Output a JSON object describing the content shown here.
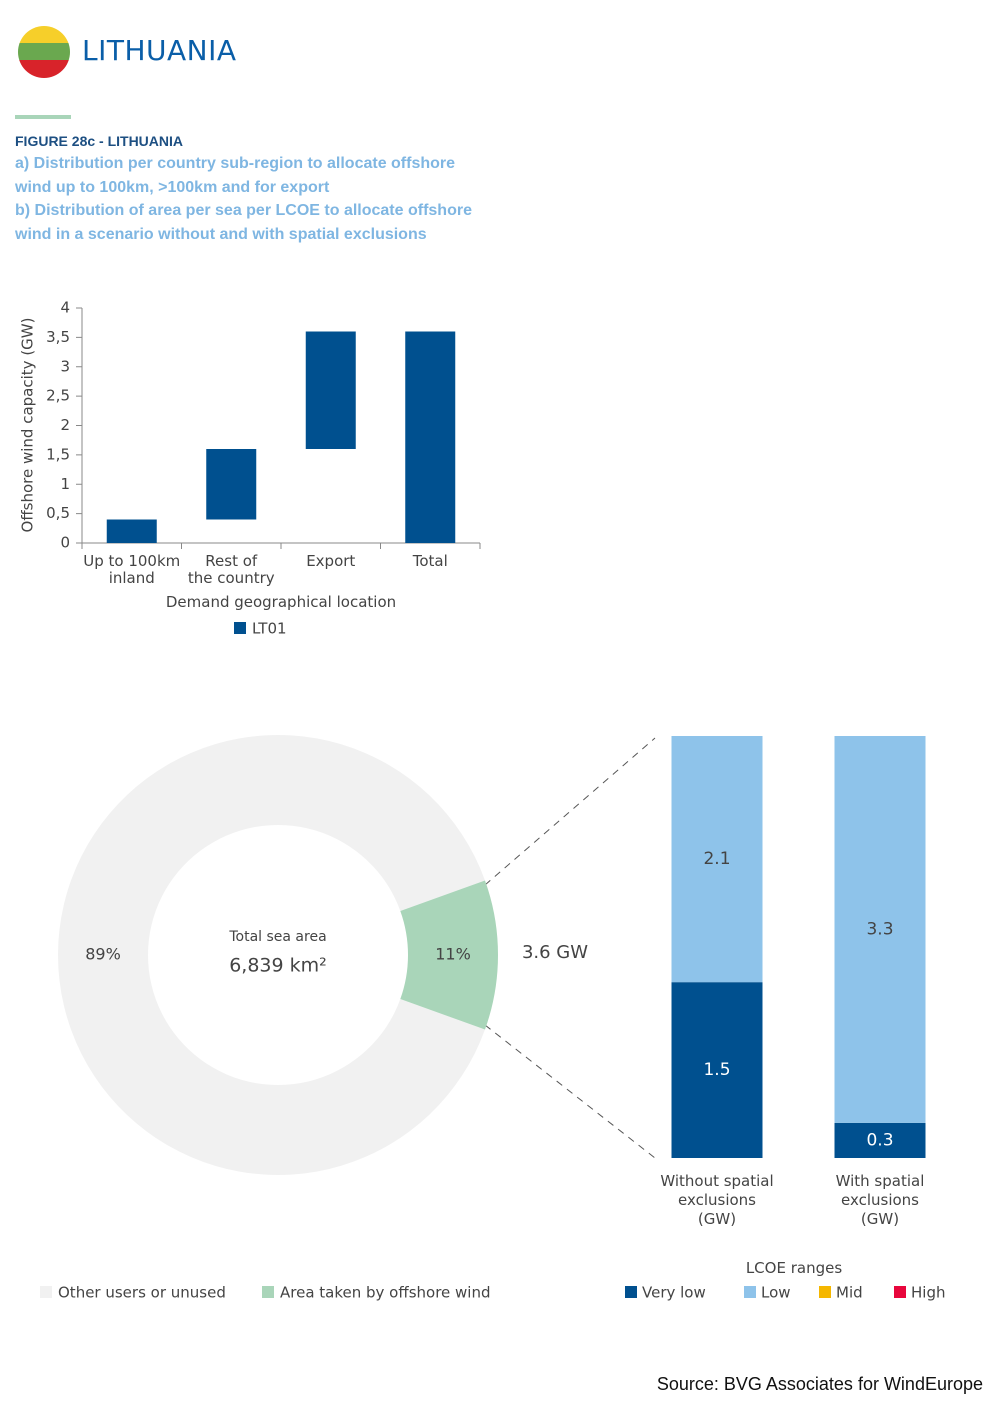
{
  "header": {
    "title": "LITHUANIA"
  },
  "figure": {
    "label": "FIGURE 28c - LITHUANIA",
    "caption_a": "a) Distribution per country sub-region to allocate offshore wind up to 100km, >100km and for export",
    "caption_b": "b) Distribution of area per sea per LCOE to allocate offshore wind in a scenario without and with spatial exclusions"
  },
  "chart_data": [
    {
      "type": "waterfall",
      "categories": [
        "Up to 100km\ninland",
        "Rest of\nthe country",
        "Export",
        "Total"
      ],
      "series": [
        {
          "name": "LT01",
          "color": "#00508f",
          "values": [
            0.4,
            1.2,
            2.0,
            3.6
          ]
        }
      ],
      "x_label": "Demand geographical location",
      "y_label": "Offshore wind capacity (GW)",
      "ylim": [
        0,
        4
      ],
      "yticks": [
        0,
        {
          "value": 0.5,
          "label": "0,5"
        },
        1,
        {
          "value": 1.5,
          "label": "1,5"
        },
        2,
        {
          "value": 2.5,
          "label": "2,5"
        },
        3,
        {
          "value": 3.5,
          "label": "3,5"
        },
        4
      ],
      "legend": "bottom"
    },
    {
      "type": "donut",
      "categories": [
        "Other users or unused",
        "Area taken by offshore wind"
      ],
      "values": [
        89,
        11
      ],
      "value_labels": [
        "89%",
        "11%"
      ],
      "colors": [
        "#f1f1f1",
        "#a9d5b9"
      ],
      "center_label": "Total sea area",
      "center_value": "6,839 km²",
      "annotation": "3.6 GW",
      "legend": "bottom"
    },
    {
      "type": "stacked_bar",
      "categories": [
        "Without spatial\nexclusions\n(GW)",
        "With spatial\nexclusions\n(GW)"
      ],
      "series": [
        {
          "name": "Very low",
          "color": "#00508f",
          "values": [
            1.5,
            0.3
          ]
        },
        {
          "name": "Low",
          "color": "#8ec3ea",
          "values": [
            2.1,
            3.3
          ]
        },
        {
          "name": "Mid",
          "color": "#f5b700",
          "values": [
            0,
            0
          ]
        },
        {
          "name": "High",
          "color": "#e8063c",
          "values": [
            0,
            0
          ]
        }
      ],
      "ylim": [
        0,
        3.6
      ],
      "legend_title": "LCOE ranges",
      "legend": "bottom"
    }
  ],
  "source": "Source: BVG Associates for WindEurope"
}
